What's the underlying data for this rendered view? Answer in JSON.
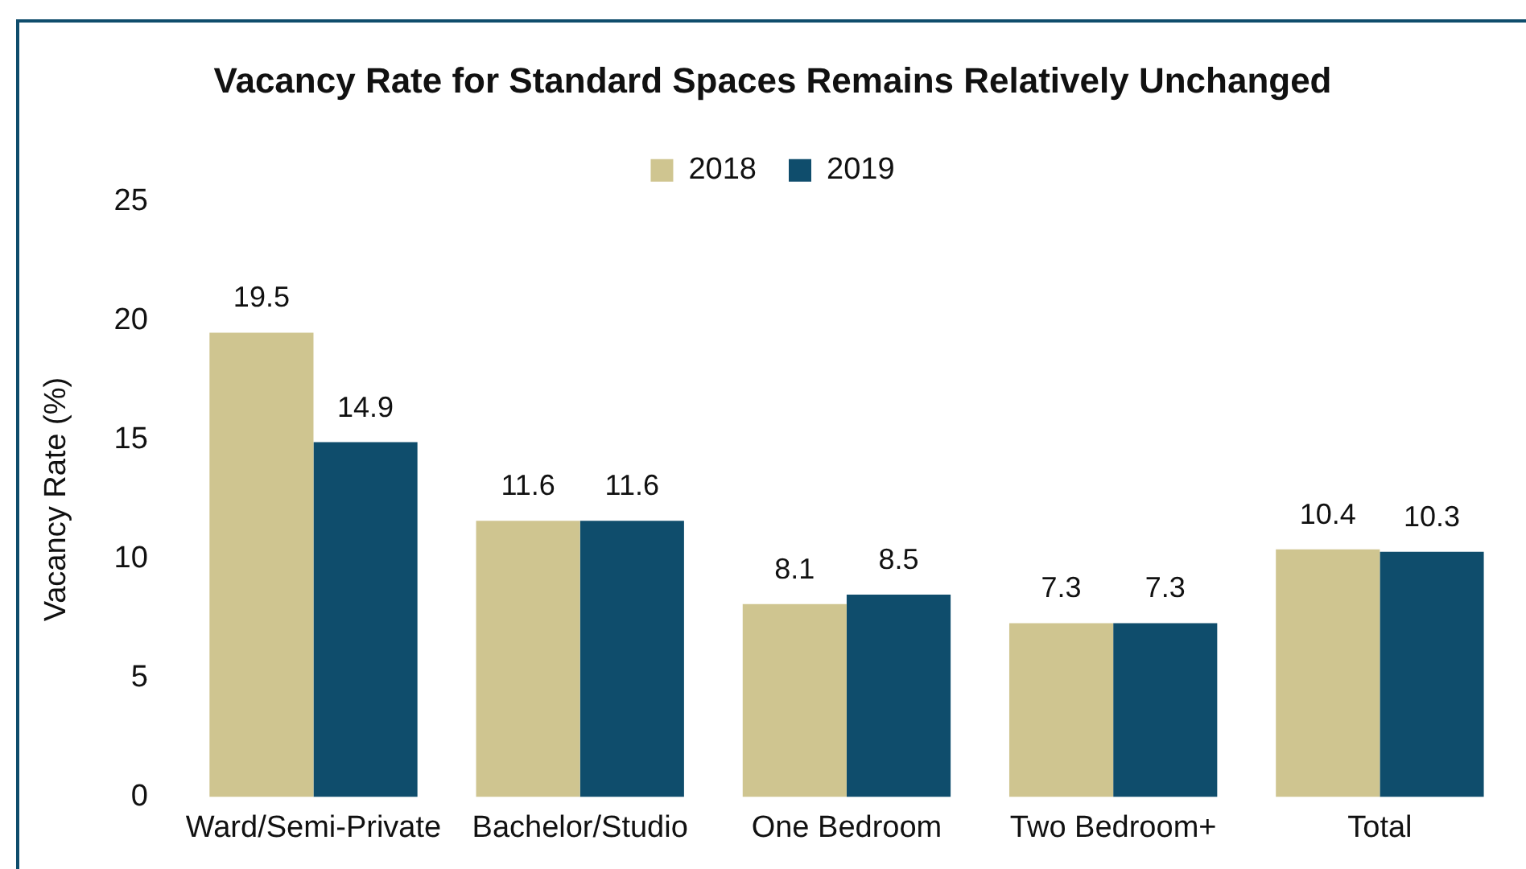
{
  "chart_data": {
    "type": "bar",
    "title": "Vacancy Rate for Standard Spaces Remains Relatively Unchanged",
    "ylabel": "Vacancy Rate (%)",
    "categories": [
      "Ward/Semi-Private",
      "Bachelor/Studio",
      "One Bedroom",
      "Two Bedroom+",
      "Total"
    ],
    "series": [
      {
        "name": "2018",
        "color": "#cfc590",
        "values": [
          19.5,
          11.6,
          8.1,
          7.3,
          10.4
        ]
      },
      {
        "name": "2019",
        "color": "#0f4d6c",
        "values": [
          14.9,
          11.6,
          8.5,
          7.3,
          10.3
        ]
      }
    ],
    "ylim": [
      0,
      25
    ],
    "yticks": [
      0,
      5,
      10,
      15,
      20,
      25
    ],
    "grid": false,
    "legend": "top",
    "data_labels": true
  }
}
